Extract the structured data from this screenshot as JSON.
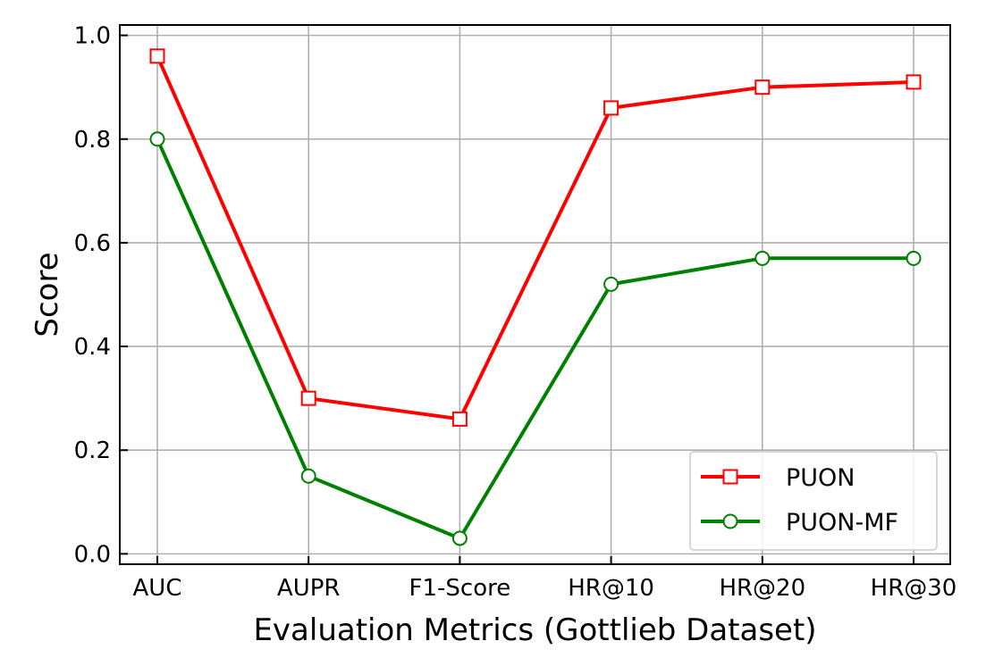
{
  "chart_data": {
    "type": "line",
    "categories": [
      "AUC",
      "AUPR",
      "F1-Score",
      "HR@10",
      "HR@20",
      "HR@30"
    ],
    "series": [
      {
        "name": "PUON",
        "values": [
          0.96,
          0.3,
          0.26,
          0.86,
          0.9,
          0.91
        ],
        "color": "#ff0000",
        "marker": "square"
      },
      {
        "name": "PUON-MF",
        "values": [
          0.8,
          0.15,
          0.03,
          0.52,
          0.57,
          0.57
        ],
        "color": "#008000",
        "marker": "circle"
      }
    ],
    "xlabel": "Evaluation Metrics (Gottlieb Dataset)",
    "ylabel": "Score",
    "ylim": [
      -0.02,
      1.02
    ],
    "yticks": [
      "0.0",
      "0.2",
      "0.4",
      "0.6",
      "0.8",
      "1.0"
    ],
    "grid": true,
    "legend_position": "lower-right"
  }
}
